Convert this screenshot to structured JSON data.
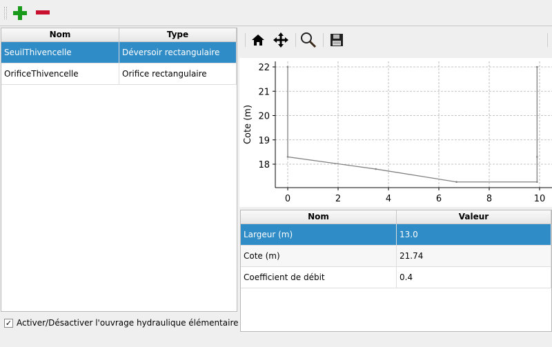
{
  "toolbar": {
    "add_icon": "plus-icon",
    "remove_icon": "minus-icon"
  },
  "structures_table": {
    "headers": [
      "Nom",
      "Type"
    ],
    "rows": [
      {
        "nom": "SeuilThivencelle",
        "type": "Déversoir rectangulaire",
        "selected": true
      },
      {
        "nom": "OrificeThivencelle",
        "type": "Orifice rectangulaire",
        "selected": false
      }
    ]
  },
  "plot_toolbar": {
    "icons": [
      "home-icon",
      "pan-icon",
      "zoom-icon",
      "save-icon"
    ]
  },
  "chart_data": {
    "type": "line",
    "ylabel": "Cote (m)",
    "xlabel": "",
    "x_ticks": [
      "0",
      "2",
      "4",
      "6",
      "8",
      "10"
    ],
    "y_ticks": [
      "18",
      "19",
      "20",
      "21",
      "22"
    ],
    "xlim": [
      -0.5,
      10.5
    ],
    "ylim": [
      17.05,
      22.1
    ],
    "grid": true,
    "color": "#808080",
    "series": [
      {
        "x": [
          0,
          0,
          3.5,
          6.7,
          9.9,
          9.9,
          9.9
        ],
        "y": [
          22,
          18.3,
          17.8,
          17.27,
          17.27,
          18.3,
          22
        ]
      }
    ]
  },
  "params_table": {
    "headers": [
      "Nom",
      "Valeur"
    ],
    "rows": [
      {
        "nom": "Largeur (m)",
        "valeur": "13.0",
        "selected": true
      },
      {
        "nom": "Cote (m)",
        "valeur": "21.74",
        "selected": false
      },
      {
        "nom": "Coefficient de débit",
        "valeur": "0.4",
        "selected": false
      }
    ]
  },
  "checkbox": {
    "label": "Activer/Désactiver l'ouvrage hydraulique élémentaire",
    "checked": true,
    "mark": "✓"
  },
  "colors": {
    "selection": "#308cc6"
  }
}
